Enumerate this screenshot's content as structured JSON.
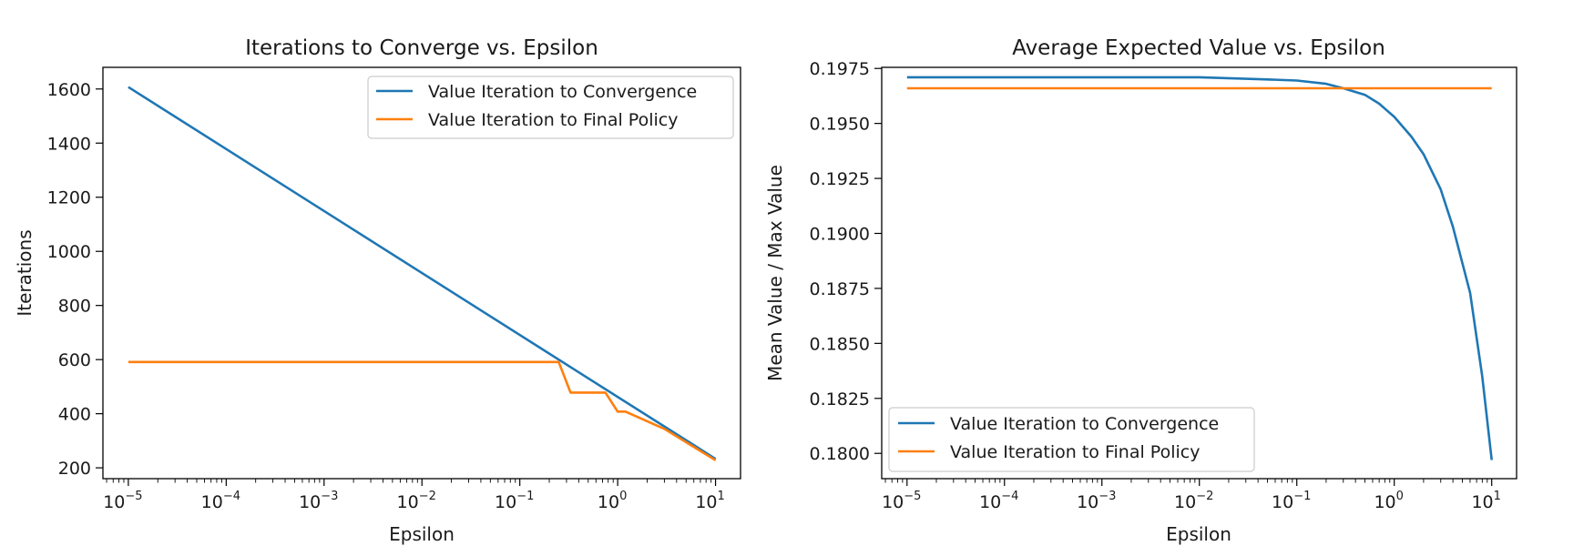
{
  "colors": {
    "convergence": "#1f77b4",
    "final_policy": "#ff7f0e"
  },
  "chart_data": [
    {
      "type": "line",
      "title": "Iterations to Converge vs. Epsilon",
      "xlabel": "Epsilon",
      "ylabel": "Iterations",
      "xscale": "log",
      "xlim": [
        5.5e-06,
        18
      ],
      "ylim": [
        160,
        1680
      ],
      "xticks": [
        {
          "value": 1e-05,
          "base": "10",
          "exp": "−5"
        },
        {
          "value": 0.0001,
          "base": "10",
          "exp": "−4"
        },
        {
          "value": 0.001,
          "base": "10",
          "exp": "−3"
        },
        {
          "value": 0.01,
          "base": "10",
          "exp": "−2"
        },
        {
          "value": 0.1,
          "base": "10",
          "exp": "−1"
        },
        {
          "value": 1,
          "base": "10",
          "exp": "0"
        },
        {
          "value": 10,
          "base": "10",
          "exp": "1"
        }
      ],
      "yticks": [
        {
          "value": 200,
          "label": "200"
        },
        {
          "value": 400,
          "label": "400"
        },
        {
          "value": 600,
          "label": "600"
        },
        {
          "value": 800,
          "label": "800"
        },
        {
          "value": 1000,
          "label": "1000"
        },
        {
          "value": 1200,
          "label": "1200"
        },
        {
          "value": 1400,
          "label": "1400"
        },
        {
          "value": 1600,
          "label": "1600"
        }
      ],
      "legend_position": "top-right",
      "series": [
        {
          "name": "Value Iteration to Convergence",
          "color": "#1f77b4",
          "x": [
            1e-05,
            10
          ],
          "y": [
            1607,
            233
          ]
        },
        {
          "name": "Value Iteration to Final Policy",
          "color": "#ff7f0e",
          "x": [
            1e-05,
            0.25,
            0.33,
            0.75,
            1.0,
            1.2,
            3.0,
            10
          ],
          "y": [
            591,
            591,
            478,
            478,
            408,
            408,
            344,
            228
          ]
        }
      ]
    },
    {
      "type": "line",
      "title": "Average Expected Value vs. Epsilon",
      "xlabel": "Epsilon",
      "ylabel": "Mean Value / Max Value",
      "xscale": "log",
      "xlim": [
        5.5e-06,
        18
      ],
      "ylim": [
        0.17885,
        0.19755
      ],
      "xticks": [
        {
          "value": 1e-05,
          "base": "10",
          "exp": "−5"
        },
        {
          "value": 0.0001,
          "base": "10",
          "exp": "−4"
        },
        {
          "value": 0.001,
          "base": "10",
          "exp": "−3"
        },
        {
          "value": 0.01,
          "base": "10",
          "exp": "−2"
        },
        {
          "value": 0.1,
          "base": "10",
          "exp": "−1"
        },
        {
          "value": 1,
          "base": "10",
          "exp": "0"
        },
        {
          "value": 10,
          "base": "10",
          "exp": "1"
        }
      ],
      "yticks": [
        {
          "value": 0.18,
          "label": "0.1800"
        },
        {
          "value": 0.1825,
          "label": "0.1825"
        },
        {
          "value": 0.185,
          "label": "0.1850"
        },
        {
          "value": 0.1875,
          "label": "0.1875"
        },
        {
          "value": 0.19,
          "label": "0.1900"
        },
        {
          "value": 0.1925,
          "label": "0.1925"
        },
        {
          "value": 0.195,
          "label": "0.1950"
        },
        {
          "value": 0.1975,
          "label": "0.1975"
        }
      ],
      "legend_position": "lower-left",
      "series": [
        {
          "name": "Value Iteration to Convergence",
          "color": "#1f77b4",
          "x": [
            1e-05,
            0.0001,
            0.001,
            0.01,
            0.05,
            0.1,
            0.2,
            0.3,
            0.5,
            0.7,
            1.0,
            1.5,
            2.0,
            3.0,
            4.0,
            6.0,
            8.0,
            10
          ],
          "y": [
            0.1971,
            0.1971,
            0.1971,
            0.1971,
            0.197,
            0.19695,
            0.1968,
            0.1966,
            0.1963,
            0.1959,
            0.1953,
            0.1944,
            0.1936,
            0.192,
            0.1903,
            0.1873,
            0.1835,
            0.1797
          ]
        },
        {
          "name": "Value Iteration to Final Policy",
          "color": "#ff7f0e",
          "x": [
            1e-05,
            10
          ],
          "y": [
            0.1966,
            0.1966
          ]
        }
      ]
    }
  ]
}
